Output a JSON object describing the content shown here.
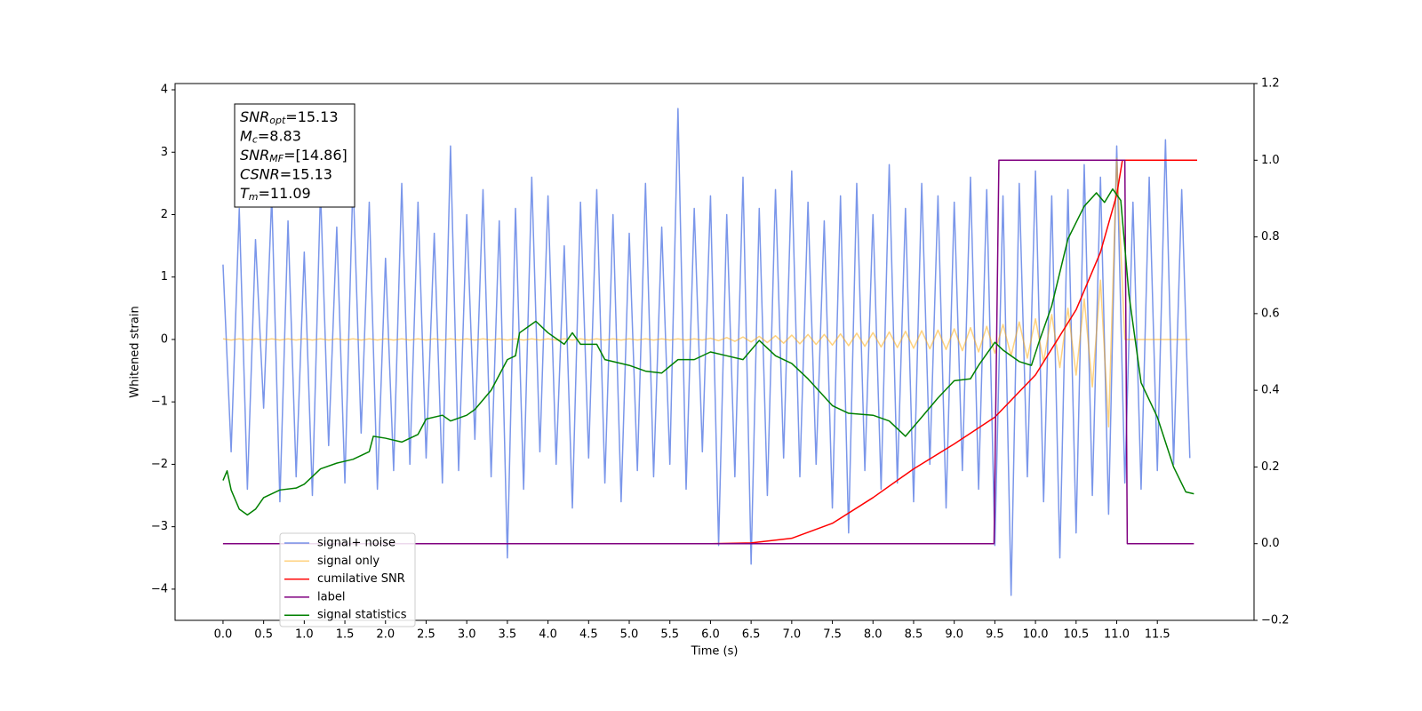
{
  "chart_data": {
    "type": "line",
    "xlabel": "Time (s)",
    "ylabel": "Whitened strain",
    "annotations": [
      {
        "main": "SNR",
        "sub": "opt",
        "rest": "=15.13"
      },
      {
        "main": "M",
        "sub": "c",
        "rest": "=8.83"
      },
      {
        "main": "SNR",
        "sub": "MF",
        "rest": "=[14.86]"
      },
      {
        "main": "CSNR",
        "sub": "",
        "rest": "=15.13"
      },
      {
        "main": "T",
        "sub": "m",
        "rest": "=11.09"
      }
    ],
    "xlim": [
      -0.59,
      12.69
    ],
    "ylim": [
      -4.5,
      4.1
    ],
    "y2lim": [
      -0.2,
      1.2
    ],
    "xticks": [
      {
        "value": 0,
        "label": "0.0"
      },
      0.5,
      {
        "value": 1,
        "label": "1.0"
      },
      1.5,
      {
        "value": 2,
        "label": "2.0"
      },
      2.5,
      {
        "value": 3,
        "label": "3.0"
      },
      3.5,
      {
        "value": 4,
        "label": "4.0"
      },
      4.5,
      {
        "value": 5,
        "label": "5.0"
      },
      5.5,
      {
        "value": 6,
        "label": "6.0"
      },
      6.5,
      {
        "value": 7,
        "label": "7.0"
      },
      7.5,
      {
        "value": 8,
        "label": "8.0"
      },
      8.5,
      {
        "value": 9,
        "label": "9.0"
      },
      9.5,
      {
        "value": 10,
        "label": "10.0"
      },
      10.5,
      {
        "value": 11,
        "label": "11.0"
      },
      11.5
    ],
    "yticks": [
      {
        "value": -4,
        "label": "−4"
      },
      {
        "value": -3,
        "label": "−3"
      },
      {
        "value": -2,
        "label": "−2"
      },
      {
        "value": -1,
        "label": "−1"
      },
      0,
      1,
      2,
      3,
      4
    ],
    "y2ticks": [
      {
        "value": -0.2,
        "label": "−0.2"
      },
      {
        "value": 0,
        "label": "0.0"
      },
      0.2,
      0.4,
      0.6,
      0.8,
      {
        "value": 1,
        "label": "1.0"
      },
      1.2
    ],
    "x": [
      0,
      0.1,
      0.2,
      0.3,
      0.4,
      0.5,
      0.6,
      0.7,
      0.8,
      0.9,
      1,
      1.1,
      1.2,
      1.3,
      1.4,
      1.5,
      1.6,
      1.7,
      1.8,
      1.9,
      2,
      2.1,
      2.2,
      2.3,
      2.4,
      2.5,
      2.6,
      2.7,
      2.8,
      2.9,
      3,
      3.1,
      3.2,
      3.3,
      3.4,
      3.5,
      3.6,
      3.7,
      3.8,
      3.9,
      4,
      4.1,
      4.2,
      4.3,
      4.4,
      4.5,
      4.6,
      4.7,
      4.8,
      4.9,
      5,
      5.1,
      5.2,
      5.3,
      5.4,
      5.5,
      5.6,
      5.7,
      5.8,
      5.9,
      6,
      6.1,
      6.2,
      6.3,
      6.4,
      6.5,
      6.6,
      6.7,
      6.8,
      6.9,
      7,
      7.1,
      7.2,
      7.3,
      7.4,
      7.5,
      7.6,
      7.7,
      7.8,
      7.9,
      8,
      8.1,
      8.2,
      8.3,
      8.4,
      8.5,
      8.6,
      8.7,
      8.8,
      8.9,
      9,
      9.1,
      9.2,
      9.3,
      9.4,
      9.5,
      9.6,
      9.7,
      9.8,
      9.9,
      10,
      10.1,
      10.2,
      10.3,
      10.4,
      10.5,
      10.6,
      10.7,
      10.8,
      10.9,
      11,
      11.1,
      11.2,
      11.3,
      11.4,
      11.5,
      11.6,
      11.7,
      11.8,
      11.9
    ],
    "legend": "lower left",
    "series": [
      {
        "name": "signal+ noise",
        "color": "#4169e1",
        "opacity": 0.7,
        "values": [
          1.2,
          -1.8,
          2.1,
          -2.4,
          1.6,
          -1.1,
          2.3,
          -2.6,
          1.9,
          -2.2,
          1.4,
          -2.5,
          2.4,
          -1.7,
          1.8,
          -2.3,
          2.6,
          -1.5,
          2.2,
          -2.4,
          1.3,
          -2.1,
          2.5,
          -2.0,
          2.2,
          -1.9,
          1.7,
          -2.3,
          3.1,
          -2.1,
          2.0,
          -1.6,
          2.4,
          -2.2,
          1.9,
          -3.5,
          2.1,
          -2.4,
          2.6,
          -1.8,
          2.3,
          -2.0,
          1.5,
          -2.7,
          2.2,
          -1.9,
          2.4,
          -2.3,
          2.0,
          -2.6,
          1.7,
          -2.1,
          2.5,
          -2.2,
          1.8,
          -2.0,
          3.7,
          -2.4,
          2.1,
          -1.8,
          2.3,
          -3.3,
          2.0,
          -2.2,
          2.6,
          -3.6,
          2.1,
          -2.5,
          2.4,
          -1.9,
          2.7,
          -2.2,
          2.2,
          -2.0,
          1.9,
          -2.7,
          2.3,
          -3.1,
          2.5,
          -2.1,
          2.0,
          -2.4,
          2.8,
          -2.3,
          2.1,
          -2.6,
          2.5,
          -2.0,
          2.3,
          -2.7,
          2.2,
          -2.1,
          2.6,
          -2.4,
          2.4,
          -3.3,
          2.3,
          -4.1,
          2.5,
          -2.2,
          2.7,
          -2.6,
          2.3,
          -3.5,
          2.4,
          -3.1,
          2.8,
          -2.5,
          2.6,
          -2.8,
          3.1,
          -2.3,
          2.2,
          -2.4,
          2.6,
          -2.1,
          3.2,
          -2.0,
          2.4,
          -1.9
        ]
      },
      {
        "name": "signal only",
        "color": "#ffa500",
        "opacity": 0.5,
        "values": [
          0.01,
          -0.01,
          0.01,
          -0.01,
          0.01,
          -0.01,
          0.01,
          -0.01,
          0.01,
          -0.01,
          0.01,
          -0.01,
          0.01,
          -0.01,
          0.01,
          -0.01,
          0.01,
          -0.01,
          0.01,
          -0.01,
          0.01,
          -0.01,
          0.01,
          -0.01,
          0.01,
          -0.01,
          0.01,
          -0.01,
          0.01,
          -0.01,
          0.01,
          -0.01,
          0.01,
          -0.01,
          0.01,
          -0.01,
          0.01,
          -0.01,
          0.01,
          -0.01,
          0.01,
          -0.01,
          0.01,
          -0.01,
          0.01,
          -0.01,
          0.01,
          -0.01,
          0.01,
          -0.01,
          0.01,
          -0.01,
          0.01,
          -0.01,
          0.01,
          -0.01,
          0.01,
          -0.01,
          0.01,
          -0.01,
          0.02,
          -0.02,
          0.03,
          -0.03,
          0.04,
          -0.04,
          0.05,
          -0.05,
          0.06,
          -0.06,
          0.07,
          -0.07,
          0.08,
          -0.08,
          0.08,
          -0.09,
          0.09,
          -0.1,
          0.1,
          -0.11,
          0.11,
          -0.12,
          0.12,
          -0.13,
          0.13,
          -0.14,
          0.14,
          -0.15,
          0.15,
          -0.16,
          0.17,
          -0.18,
          0.19,
          -0.2,
          0.21,
          -0.22,
          0.24,
          -0.26,
          0.28,
          -0.3,
          0.33,
          -0.36,
          0.4,
          -0.45,
          0.5,
          -0.57,
          0.65,
          -0.76,
          0.95,
          -1.4,
          2.9,
          0,
          0,
          0,
          0,
          0,
          0,
          0,
          0,
          0
        ]
      },
      {
        "name": "cumilative SNR",
        "color": "#ff0000",
        "axis": "y2",
        "x": [
          0,
          6.0,
          6.5,
          7.0,
          7.5,
          8.0,
          8.5,
          9.0,
          9.5,
          10.0,
          10.5,
          10.8,
          11.0,
          11.07,
          11.5,
          11.99
        ],
        "values": [
          0,
          0,
          0.002,
          0.014,
          0.053,
          0.12,
          0.195,
          0.26,
          0.33,
          0.44,
          0.61,
          0.76,
          0.91,
          1.0,
          1.0,
          1.0
        ]
      },
      {
        "name": "label",
        "color": "#800080",
        "axis": "y2",
        "x": [
          0,
          9.49,
          9.55,
          11.1,
          11.13,
          11.95
        ],
        "values": [
          0,
          0,
          1,
          1,
          0,
          0
        ]
      },
      {
        "name": "signal statistics",
        "color": "#008000",
        "axis": "y2",
        "x": [
          0,
          0.05,
          0.1,
          0.2,
          0.3,
          0.4,
          0.5,
          0.7,
          0.9,
          1.0,
          1.1,
          1.2,
          1.4,
          1.6,
          1.8,
          1.85,
          2.0,
          2.2,
          2.4,
          2.5,
          2.7,
          2.8,
          3.0,
          3.1,
          3.3,
          3.5,
          3.6,
          3.65,
          3.75,
          3.85,
          4.0,
          4.2,
          4.3,
          4.4,
          4.6,
          4.7,
          5.0,
          5.2,
          5.4,
          5.6,
          5.8,
          6.0,
          6.2,
          6.4,
          6.6,
          6.8,
          7.0,
          7.2,
          7.5,
          7.7,
          8.0,
          8.2,
          8.4,
          8.6,
          8.8,
          9.0,
          9.2,
          9.3,
          9.5,
          9.6,
          9.8,
          9.95,
          10.05,
          10.2,
          10.4,
          10.6,
          10.75,
          10.85,
          10.95,
          11.05,
          11.15,
          11.3,
          11.5,
          11.7,
          11.85,
          11.95
        ],
        "values": [
          0.165,
          0.19,
          0.14,
          0.09,
          0.075,
          0.09,
          0.12,
          0.14,
          0.145,
          0.155,
          0.175,
          0.195,
          0.21,
          0.22,
          0.24,
          0.28,
          0.275,
          0.265,
          0.285,
          0.325,
          0.335,
          0.32,
          0.335,
          0.35,
          0.4,
          0.48,
          0.49,
          0.55,
          0.565,
          0.58,
          0.55,
          0.52,
          0.55,
          0.52,
          0.52,
          0.48,
          0.465,
          0.45,
          0.445,
          0.48,
          0.48,
          0.5,
          0.49,
          0.48,
          0.53,
          0.49,
          0.47,
          0.43,
          0.36,
          0.34,
          0.335,
          0.32,
          0.28,
          0.33,
          0.38,
          0.425,
          0.43,
          0.465,
          0.525,
          0.505,
          0.475,
          0.465,
          0.53,
          0.62,
          0.795,
          0.88,
          0.915,
          0.89,
          0.925,
          0.895,
          0.65,
          0.42,
          0.33,
          0.2,
          0.135,
          0.13
        ]
      }
    ]
  }
}
